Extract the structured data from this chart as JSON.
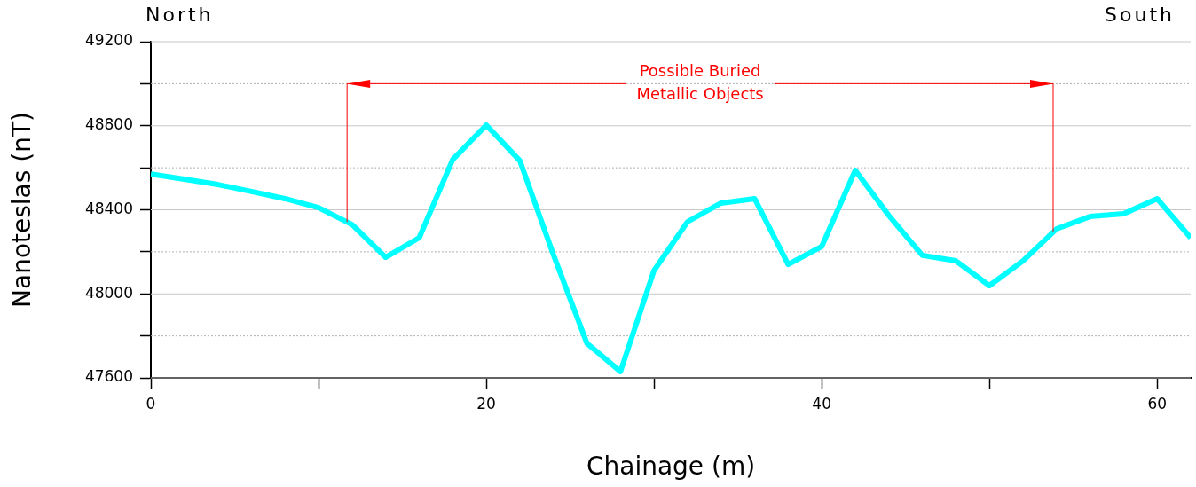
{
  "chart_data": {
    "type": "line",
    "xlabel": "Chainage (m)",
    "ylabel": "Nanoteslas (nT)",
    "annotations": [
      "North",
      "South",
      {
        "text": "Possible Buried Metallic Objects",
        "x": 11.7,
        "y": 49000
      }
    ],
    "x": [
      0,
      2,
      4,
      6,
      8,
      10,
      12,
      14,
      16,
      18,
      20,
      22,
      24,
      26,
      28,
      30,
      32,
      34,
      36,
      38,
      40,
      42,
      44,
      46,
      48,
      50,
      52,
      54,
      56,
      58,
      60,
      62
    ],
    "series": [
      {
        "color": "#00ffff",
        "values": [
          48570,
          48546,
          48520,
          48487,
          48453,
          48410,
          48330,
          48174,
          48267,
          48639,
          48803,
          48634,
          48187,
          47765,
          47630,
          48111,
          48343,
          48432,
          48453,
          48140,
          48225,
          48588,
          48373,
          48183,
          48157,
          48039,
          48157,
          48309,
          48368,
          48381,
          48453,
          48267
        ]
      }
    ],
    "xlim": [
      0,
      62
    ],
    "xticks": [
      0,
      {
        "value": 10,
        "label": null
      },
      20,
      {
        "value": 30,
        "label": null
      },
      40,
      {
        "value": 50,
        "label": null
      },
      60
    ],
    "ylim": [
      47600,
      49200
    ],
    "yticks": [
      47600,
      {
        "value": 47800,
        "label": null
      },
      48000,
      {
        "value": 48200,
        "label": null
      },
      48400,
      {
        "value": 48600,
        "label": null
      },
      48800,
      {
        "value": 49000,
        "label": null
      },
      49200
    ],
    "ref_lines": [
      {
        "axis": "x",
        "value": 11.7,
        "color": "#ff0000"
      },
      {
        "axis": "x",
        "value": 53.8,
        "color": "#ff0000"
      }
    ],
    "grid": "y",
    "legend": false,
    "marker": "none",
    "line_style": "solid"
  }
}
